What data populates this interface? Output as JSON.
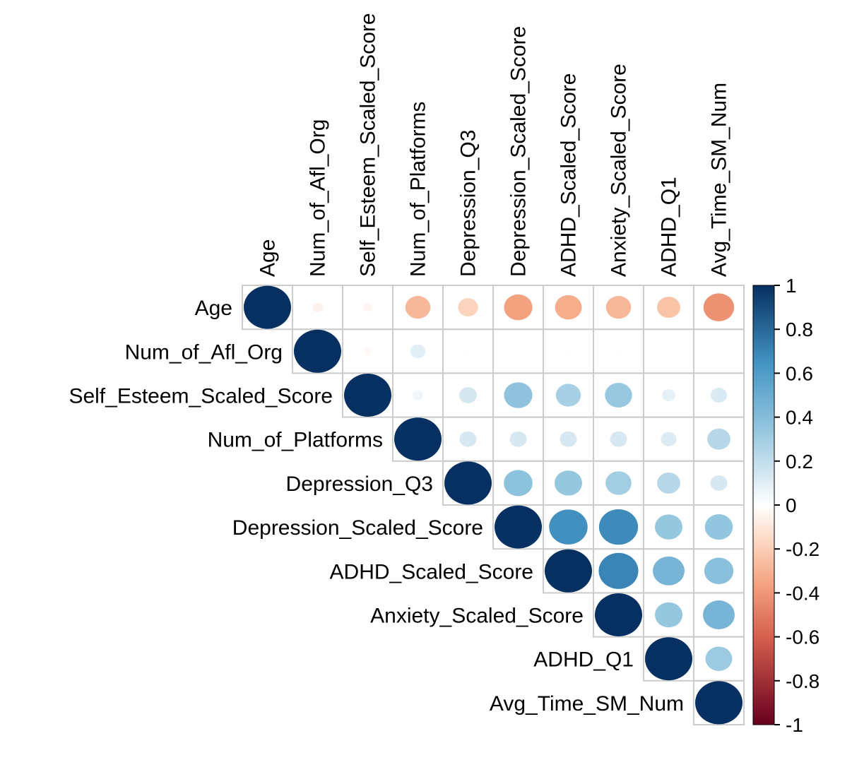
{
  "chart_data": {
    "type": "heatmap",
    "style": "correlation-matrix-circles-upper",
    "variables": [
      "Age",
      "Num_of_Afl_Org",
      "Self_Esteem_Scaled_Score",
      "Num_of_Platforms",
      "Depression_Q3",
      "Depression_Scaled_Score",
      "ADHD_Scaled_Score",
      "Anxiety_Scaled_Score",
      "ADHD_Q1",
      "Avg_Time_SM_Num"
    ],
    "matrix": [
      [
        1.0,
        -0.05,
        -0.04,
        -0.28,
        -0.18,
        -0.36,
        -0.32,
        -0.28,
        -0.24,
        -0.42
      ],
      [
        -0.05,
        1.0,
        -0.03,
        0.1,
        0.01,
        0.0,
        0.01,
        0.01,
        0.0,
        0.005
      ],
      [
        -0.04,
        -0.03,
        1.0,
        0.05,
        0.14,
        0.36,
        0.28,
        0.33,
        0.08,
        0.12
      ],
      [
        -0.28,
        0.1,
        0.05,
        1.0,
        0.13,
        0.13,
        0.13,
        0.13,
        0.11,
        0.24
      ],
      [
        -0.18,
        0.01,
        0.14,
        0.13,
        1.0,
        0.37,
        0.34,
        0.3,
        0.24,
        0.13
      ],
      [
        -0.36,
        0.0,
        0.36,
        0.13,
        0.37,
        1.0,
        0.66,
        0.68,
        0.34,
        0.35
      ],
      [
        -0.32,
        0.01,
        0.28,
        0.13,
        0.34,
        0.66,
        1.0,
        0.7,
        0.45,
        0.38
      ],
      [
        -0.28,
        0.01,
        0.33,
        0.13,
        0.3,
        0.68,
        0.7,
        1.0,
        0.34,
        0.45
      ],
      [
        -0.24,
        0.0,
        0.08,
        0.11,
        0.24,
        0.34,
        0.45,
        0.34,
        1.0,
        0.32
      ],
      [
        -0.42,
        0.005,
        0.12,
        0.24,
        0.13,
        0.35,
        0.38,
        0.45,
        0.32,
        1.0
      ]
    ],
    "legend": {
      "ticks": [
        "1",
        "0.8",
        "0.6",
        "0.4",
        "0.2",
        "0",
        "-0.2",
        "-0.4",
        "-0.6",
        "-0.8",
        "-1"
      ],
      "range": [
        -1,
        1
      ],
      "colors": {
        "neg_end": "#67001F",
        "neg_mid": "#D6604D",
        "neg_light": "#F4A582",
        "neg_pale": "#FDDBC7",
        "zero": "#FFFFFF",
        "pos_pale": "#D1E5F0",
        "pos_light": "#92C5DE",
        "pos_mid": "#4393C3",
        "pos_end": "#053061"
      }
    },
    "grid_color": "#CCCCCC"
  }
}
